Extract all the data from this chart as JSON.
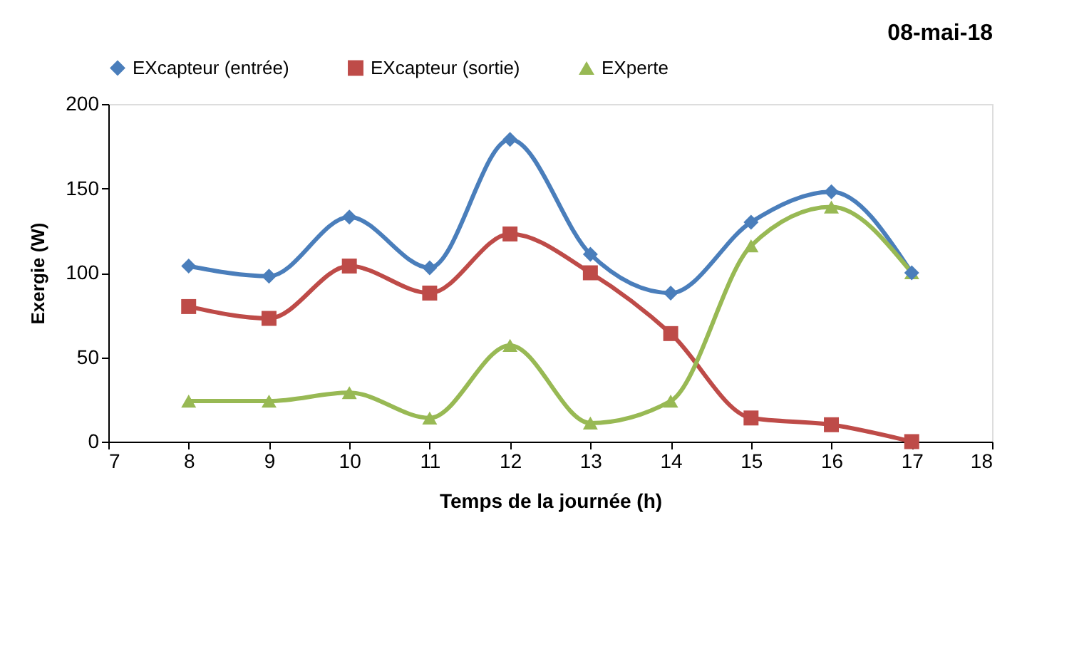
{
  "chart_data": {
    "type": "line",
    "title": "08-mai-18",
    "xlabel": "Temps de la journée (h)",
    "ylabel": "Exergie (W)",
    "x": [
      8,
      9,
      10,
      11,
      12,
      13,
      14,
      15,
      16,
      17
    ],
    "series": [
      {
        "name": "EXcapteur (entrée)",
        "color": "#4a7ebb",
        "marker": "diamond",
        "values": [
          104,
          98,
          133,
          103,
          179,
          111,
          88,
          130,
          148,
          100
        ]
      },
      {
        "name": "EXcapteur (sortie)",
        "color": "#be4b48",
        "marker": "square",
        "values": [
          80,
          73,
          104,
          88,
          123,
          100,
          64,
          14,
          10,
          0
        ]
      },
      {
        "name": "EXperte",
        "color": "#98b954",
        "marker": "triangle",
        "values": [
          24,
          24,
          29,
          14,
          57,
          11,
          24,
          116,
          139,
          100
        ]
      }
    ],
    "xlim": [
      7,
      18
    ],
    "xticks": [
      7,
      8,
      9,
      10,
      11,
      12,
      13,
      14,
      15,
      16,
      17,
      18
    ],
    "ylim": [
      0,
      200
    ],
    "yticks": [
      0,
      50,
      100,
      150,
      200
    ],
    "grid": false,
    "legend": "top",
    "line_style": "solid"
  }
}
